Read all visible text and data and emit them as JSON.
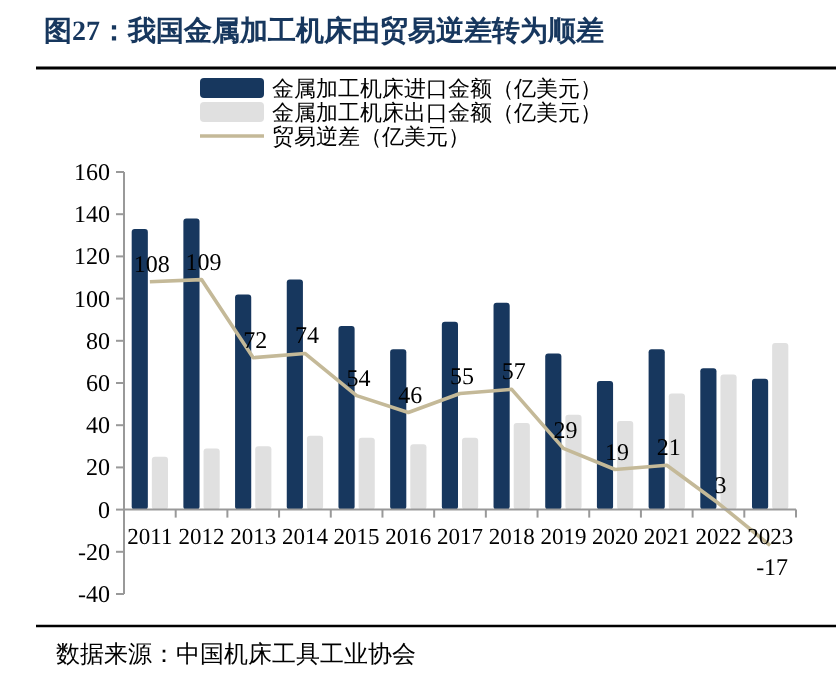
{
  "chart_data": {
    "type": "bar",
    "title": "图27：我国金属加工机床由贸易逆差转为顺差",
    "categories": [
      "2011",
      "2012",
      "2013",
      "2014",
      "2015",
      "2016",
      "2017",
      "2018",
      "2019",
      "2020",
      "2021",
      "2022",
      "2023"
    ],
    "series": [
      {
        "name": "金属加工机床进口金额（亿美元）",
        "color": "#17375e",
        "values": [
          133,
          138,
          102,
          109,
          87,
          76,
          89,
          98,
          74,
          61,
          76,
          67,
          62
        ]
      },
      {
        "name": "金属加工机床出口金额（亿美元）",
        "color": "#e0e0e0",
        "values": [
          25,
          29,
          30,
          35,
          34,
          31,
          34,
          41,
          45,
          42,
          55,
          64,
          79
        ]
      },
      {
        "name": "贸易逆差（亿美元）",
        "type": "line",
        "color": "#c4b998",
        "values": [
          108,
          109,
          72,
          74,
          54,
          46,
          55,
          57,
          29,
          19,
          21,
          3,
          -17
        ],
        "value_labels": [
          "108",
          "109",
          "72",
          "74",
          "54",
          "46",
          "55",
          "57",
          "29",
          "19",
          "21",
          "3",
          "-17"
        ]
      }
    ],
    "ylim": [
      -40,
      160
    ],
    "yticks": [
      -40,
      -20,
      0,
      20,
      40,
      60,
      80,
      100,
      120,
      140,
      160
    ],
    "grid": false,
    "legend": "top",
    "annotations": [
      "数据来源：中国机床工具工业协会"
    ]
  }
}
